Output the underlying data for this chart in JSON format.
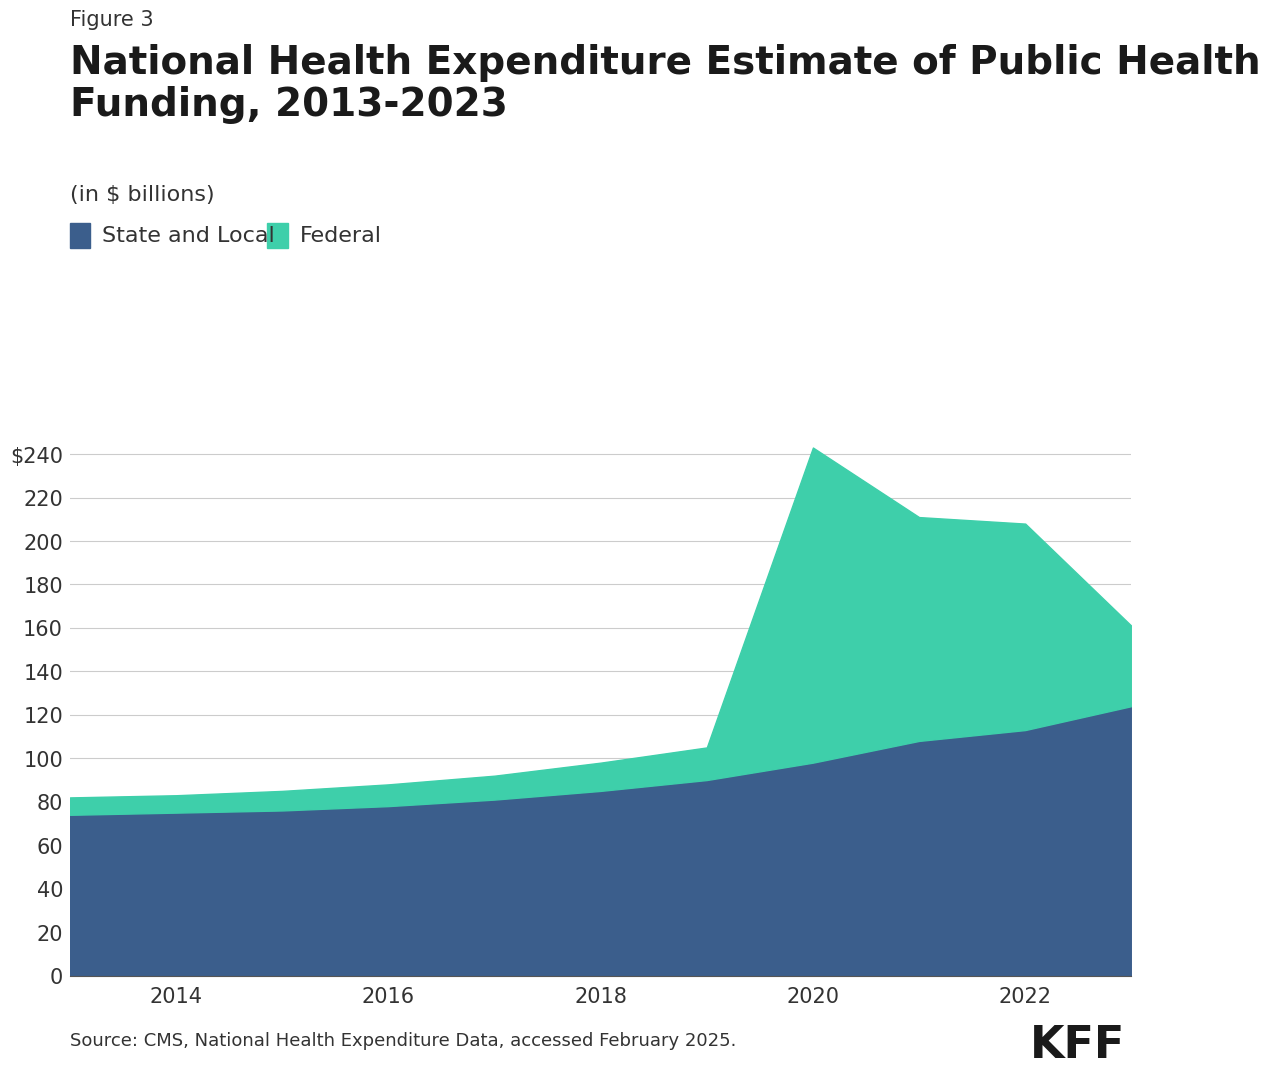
{
  "figure_label": "Figure 3",
  "title": "National Health Expenditure Estimate of Public Health\nFunding, 2013-2023",
  "subtitle": "(in $ billions)",
  "years": [
    2013,
    2014,
    2015,
    2016,
    2017,
    2018,
    2019,
    2020,
    2021,
    2022,
    2023
  ],
  "state_local": [
    74,
    75,
    76,
    78,
    81,
    85,
    90,
    98,
    108,
    113,
    124
  ],
  "federal": [
    8,
    8,
    9,
    10,
    11,
    13,
    15,
    145,
    103,
    95,
    37
  ],
  "state_local_color": "#3b5e8c",
  "federal_color": "#3ecfaa",
  "ylim": [
    0,
    260
  ],
  "yticks": [
    0,
    20,
    40,
    60,
    80,
    100,
    120,
    140,
    160,
    180,
    200,
    220,
    240
  ],
  "ytick_labels": [
    "0",
    "20",
    "40",
    "60",
    "80",
    "100",
    "120",
    "140",
    "160",
    "180",
    "200",
    "220",
    "$240"
  ],
  "xticks": [
    2014,
    2016,
    2018,
    2020,
    2022
  ],
  "xtick_labels": [
    "2014",
    "2016",
    "2018",
    "2020",
    "2022"
  ],
  "source_text": "Source: CMS, National Health Expenditure Data, accessed February 2025.",
  "kff_text": "KFF",
  "legend_state_local": "State and Local",
  "legend_federal": "Federal",
  "background_color": "#ffffff",
  "grid_color": "#cccccc",
  "title_fontsize": 28,
  "figure_label_fontsize": 15,
  "subtitle_fontsize": 16,
  "tick_fontsize": 15,
  "legend_fontsize": 16,
  "source_fontsize": 13
}
